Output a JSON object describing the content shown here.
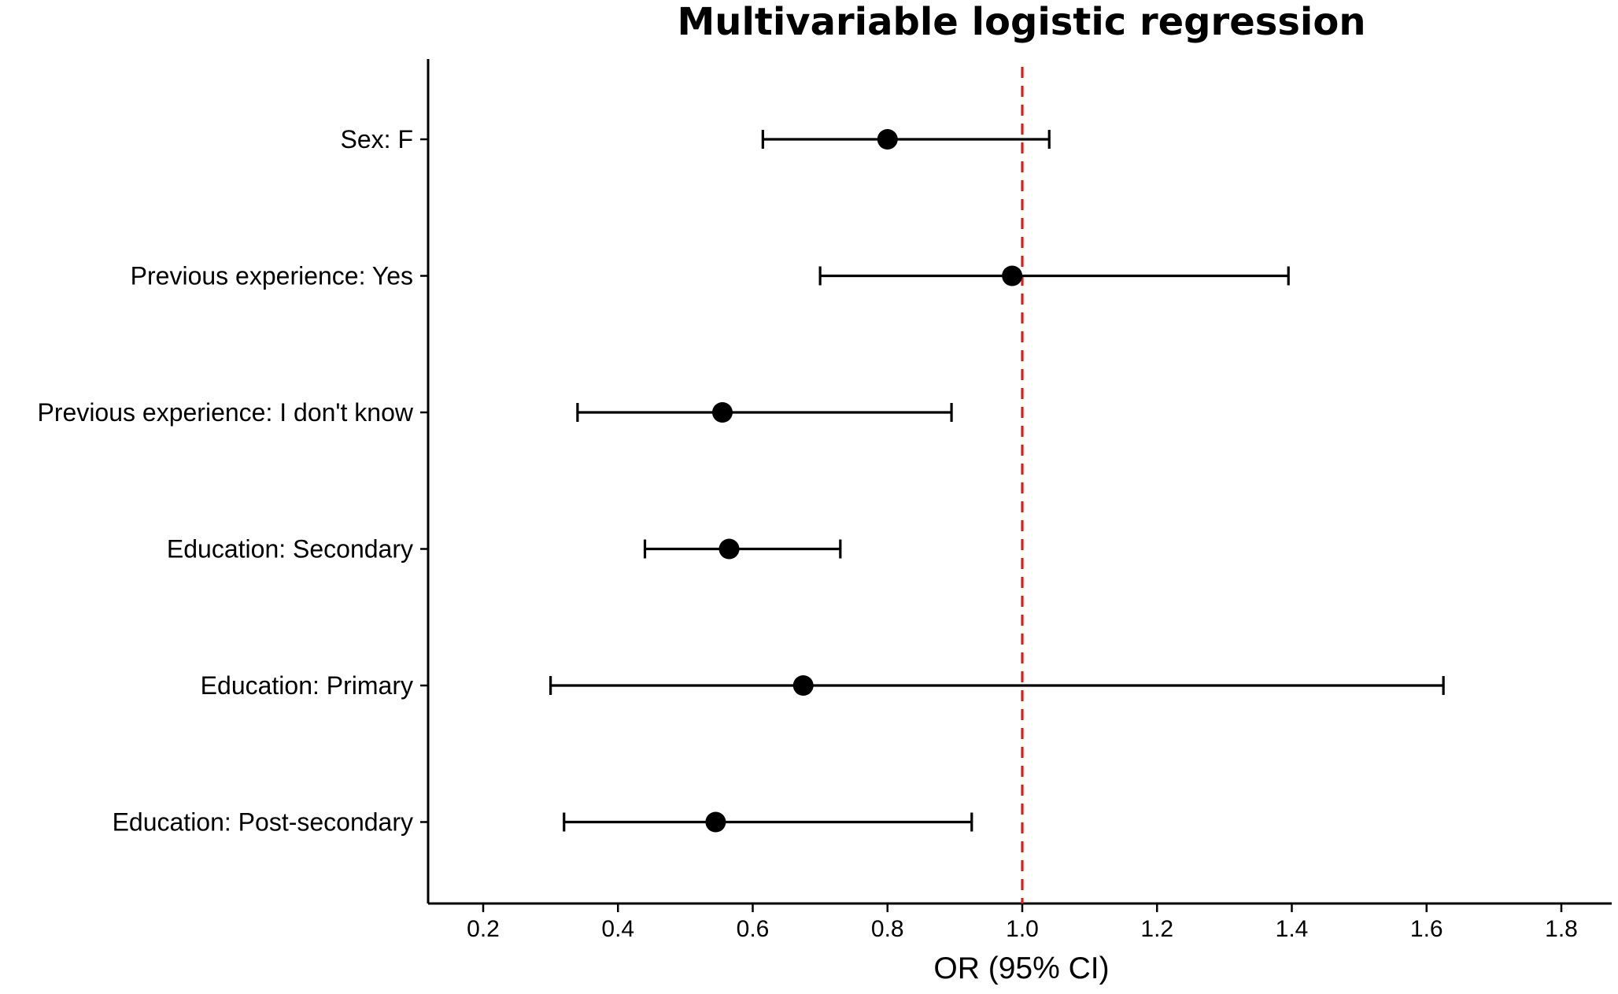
{
  "chart_data": {
    "type": "scatter",
    "subtype": "forest-plot",
    "title": "Multivariable logistic regression",
    "xlabel": "OR (95% CI)",
    "ylabel": "",
    "xlim": [
      0.12,
      1.88
    ],
    "xticks": [
      "0.2",
      "0.4",
      "0.6",
      "0.8",
      "1.0",
      "1.2",
      "1.4",
      "1.6",
      "1.8"
    ],
    "reference_line": {
      "x": 1.0,
      "color": "#e31a1c",
      "style": "dashed"
    },
    "grid": false,
    "legend": "none",
    "rows": [
      {
        "label": "Sex: F",
        "or": 0.8,
        "lower": 0.615,
        "upper": 1.04
      },
      {
        "label": "Previous experience: Yes",
        "or": 0.985,
        "lower": 0.7,
        "upper": 1.395
      },
      {
        "label": "Previous experience: I don't know",
        "or": 0.555,
        "lower": 0.34,
        "upper": 0.895
      },
      {
        "label": "Education: Secondary",
        "or": 0.565,
        "lower": 0.44,
        "upper": 0.73
      },
      {
        "label": "Education: Primary",
        "or": 0.675,
        "lower": 0.3,
        "upper": 1.625
      },
      {
        "label": "Education: Post-secondary",
        "or": 0.545,
        "lower": 0.32,
        "upper": 0.925
      }
    ],
    "colors": {
      "points": "#000000",
      "reference_line": "#e31a1c"
    }
  }
}
